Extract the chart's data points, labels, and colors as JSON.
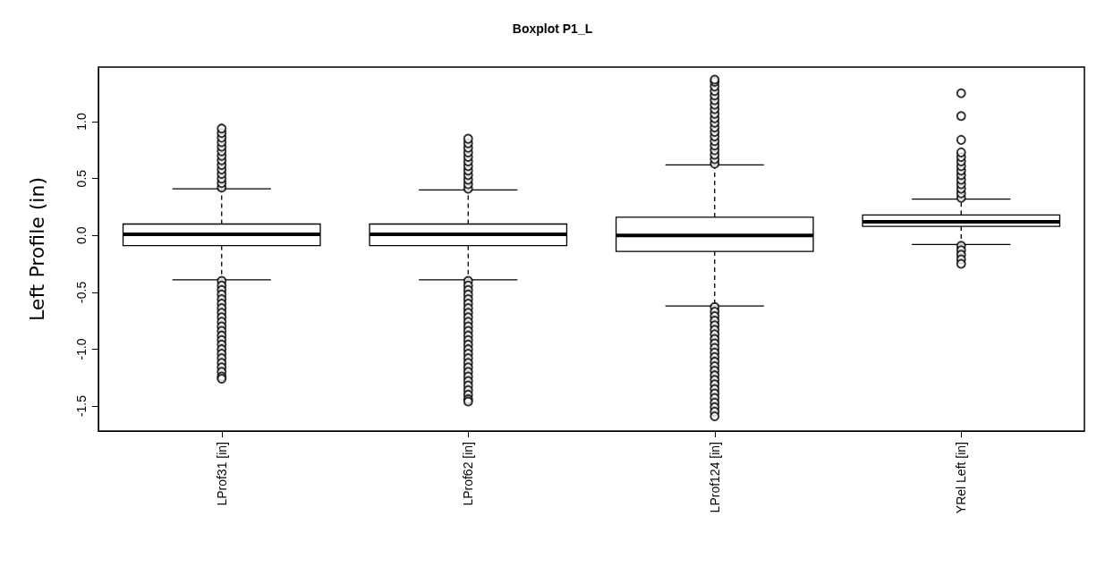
{
  "chart_data": {
    "type": "box",
    "title": "Boxplot P1_L",
    "ylabel": "Left Profile (in)",
    "categories": [
      "LProf31 [in]",
      "LProf62 [in]",
      "LProf124 [in]",
      "YRel Left [in]"
    ],
    "ylim": [
      -1.72,
      1.48
    ],
    "yticks": [
      -1.5,
      {
        "value": -1,
        "label": "-1.0"
      },
      -0.5,
      {
        "value": 0,
        "label": "0.0"
      },
      0.5,
      {
        "value": 1,
        "label": "1.0"
      }
    ],
    "grid": false,
    "marker": "circle",
    "color": "#000000",
    "boxes": [
      {
        "low": -0.39,
        "q1": -0.09,
        "median": 0.01,
        "q3": 0.1,
        "high": 0.41,
        "outliers": [
          0.42,
          0.46,
          0.5,
          0.54,
          0.58,
          0.62,
          0.66,
          0.7,
          0.74,
          0.78,
          0.82,
          0.86,
          0.9,
          0.94,
          -0.4,
          -0.44,
          -0.48,
          -0.52,
          -0.56,
          -0.6,
          -0.64,
          -0.68,
          -0.72,
          -0.76,
          -0.8,
          -0.84,
          -0.88,
          -0.92,
          -0.96,
          -1.0,
          -1.04,
          -1.08,
          -1.12,
          -1.16,
          -1.2,
          -1.24,
          -1.26
        ]
      },
      {
        "low": -0.39,
        "q1": -0.09,
        "median": 0.01,
        "q3": 0.1,
        "high": 0.4,
        "outliers": [
          0.41,
          0.45,
          0.49,
          0.53,
          0.57,
          0.61,
          0.65,
          0.69,
          0.73,
          0.77,
          0.81,
          0.85,
          -0.4,
          -0.44,
          -0.48,
          -0.52,
          -0.56,
          -0.6,
          -0.64,
          -0.68,
          -0.72,
          -0.76,
          -0.8,
          -0.84,
          -0.88,
          -0.92,
          -0.96,
          -1.0,
          -1.04,
          -1.08,
          -1.12,
          -1.16,
          -1.2,
          -1.24,
          -1.28,
          -1.32,
          -1.36,
          -1.4,
          -1.44,
          -1.46
        ]
      },
      {
        "low": -0.62,
        "q1": -0.14,
        "median": 0.0,
        "q3": 0.16,
        "high": 0.62,
        "outliers": [
          0.63,
          0.67,
          0.71,
          0.75,
          0.79,
          0.83,
          0.87,
          0.91,
          0.95,
          0.99,
          1.03,
          1.07,
          1.11,
          1.15,
          1.19,
          1.23,
          1.27,
          1.31,
          1.35,
          1.37,
          -0.63,
          -0.67,
          -0.71,
          -0.75,
          -0.79,
          -0.83,
          -0.87,
          -0.91,
          -0.95,
          -0.99,
          -1.03,
          -1.07,
          -1.11,
          -1.15,
          -1.19,
          -1.23,
          -1.27,
          -1.31,
          -1.35,
          -1.39,
          -1.43,
          -1.47,
          -1.51,
          -1.55,
          -1.59
        ]
      },
      {
        "low": -0.08,
        "q1": 0.08,
        "median": 0.12,
        "q3": 0.18,
        "high": 0.32,
        "outliers": [
          0.33,
          0.37,
          0.41,
          0.45,
          0.49,
          0.53,
          0.57,
          0.61,
          0.65,
          0.69,
          0.73,
          0.84,
          1.05,
          1.25,
          -0.09,
          -0.13,
          -0.17,
          -0.21,
          -0.25
        ]
      }
    ]
  }
}
